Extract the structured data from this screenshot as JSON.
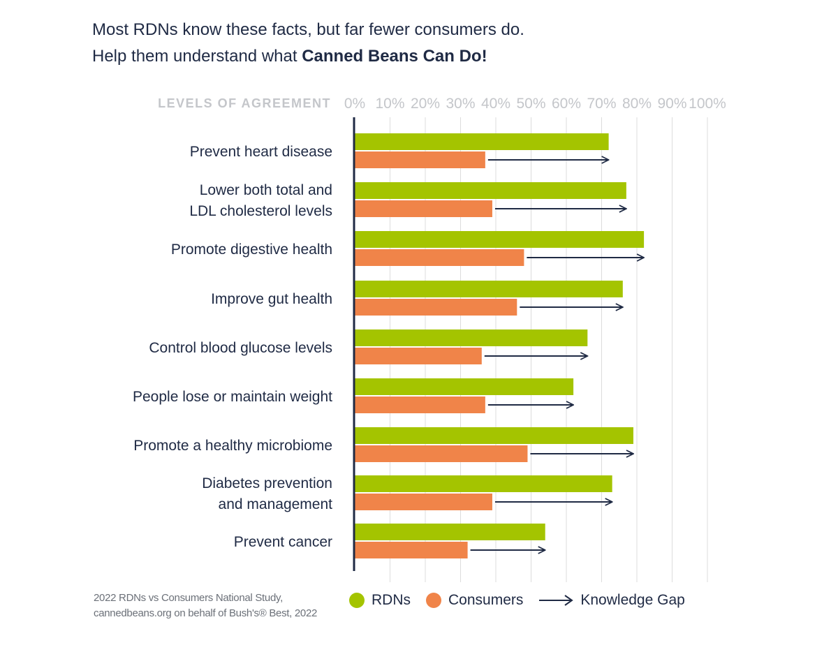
{
  "header": {
    "line1": "Most RDNs know these facts, but far fewer consumers do.",
    "line2_prefix": "Help them understand what ",
    "line2_bold": "Canned Beans Can Do!"
  },
  "colors": {
    "rdn": "#a4c400",
    "consumer": "#f08449",
    "axis": "#1f2a44",
    "grid": "#dcdcdc",
    "tick": "#c4c6ca"
  },
  "chart_data": {
    "type": "bar",
    "axis_title": "LEVELS OF AGREEMENT",
    "xlim": [
      0,
      100
    ],
    "x_ticks": [
      "0%",
      "10%",
      "20%",
      "30%",
      "40%",
      "50%",
      "60%",
      "70%",
      "80%",
      "90%",
      "100%"
    ],
    "grid": true,
    "categories": [
      [
        "Prevent heart disease"
      ],
      [
        "Lower both total and",
        "LDL cholesterol levels"
      ],
      [
        "Promote digestive health"
      ],
      [
        "Improve gut health"
      ],
      [
        "Control blood glucose levels"
      ],
      [
        "People lose or maintain weight"
      ],
      [
        "Promote a healthy microbiome"
      ],
      [
        "Diabetes prevention",
        "and management"
      ],
      [
        "Prevent cancer"
      ]
    ],
    "series": [
      {
        "name": "RDNs",
        "values": [
          72,
          77,
          82,
          76,
          66,
          62,
          79,
          73,
          54
        ]
      },
      {
        "name": "Consumers",
        "values": [
          37,
          39,
          48,
          46,
          36,
          37,
          49,
          39,
          32
        ]
      }
    ]
  },
  "legend": {
    "rdn": "RDNs",
    "consumers": "Consumers",
    "gap": "Knowledge Gap"
  },
  "footnote": {
    "line1": "2022 RDNs vs Consumers National Study,",
    "line2": "cannedbeans.org on behalf of Bush's® Best, 2022"
  }
}
